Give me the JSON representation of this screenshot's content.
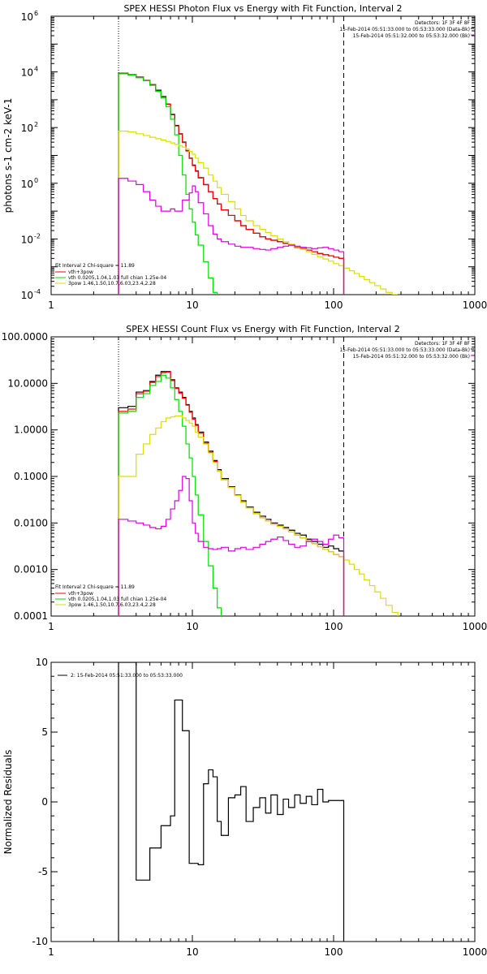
{
  "chart_data": [
    {
      "type": "line",
      "title": "SPEX HESSI Photon Flux vs Energy with Fit Function, Interval 2",
      "ylabel": "photons s-1 cm-2 keV-1",
      "xlabel": "",
      "xscale": "log",
      "yscale": "log",
      "xlim": [
        1,
        1000
      ],
      "ylim": [
        0.0001,
        1000000
      ],
      "x_ticks": [
        "1",
        "10",
        "100",
        "1000"
      ],
      "y_ticks": [
        {
          "v": 0.0001,
          "b": "10",
          "e": "-4"
        },
        {
          "v": 0.01,
          "b": "10",
          "e": "-2"
        },
        {
          "v": 1,
          "b": "10",
          "e": "0"
        },
        {
          "v": 100,
          "b": "10",
          "e": "2"
        },
        {
          "v": 10000,
          "b": "10",
          "e": "4"
        },
        {
          "v": 1000000,
          "b": "10",
          "e": "6"
        }
      ],
      "vlines": [
        {
          "x": 3,
          "style": "dotted"
        },
        {
          "x": 118,
          "style": "dashed"
        }
      ],
      "legend_top_right": [
        "Detectors: 1F 3F 4F 8F",
        "15-Feb-2014 05:51:33.000 to 05:53:33.000 (Data-Bk)",
        "15-Feb-2014 05:51:32.000 to 05:53:32.000 (Bk)"
      ],
      "legend_bottom_left_title": "Fit Interval 2   Chi-square = 11.89",
      "legend_bottom_left": [
        {
          "label": "vth+3pow",
          "color": "#ff0000"
        },
        {
          "label": "vth 0.0205,1.04,1.03  full chian 1.25e-04",
          "color": "#00dd00"
        },
        {
          "label": "3pow 1.46,1.50,10.7,6.03,23.4,2.28",
          "color": "#dddd00"
        }
      ],
      "bin_edges": [
        3,
        3.5,
        4,
        4.5,
        5,
        5.5,
        6,
        6.5,
        7,
        7.5,
        8,
        8.5,
        9,
        9.5,
        10,
        10.5,
        11,
        12,
        13,
        14,
        15,
        16,
        18,
        20,
        22,
        24,
        27,
        30,
        33,
        36,
        40,
        44,
        48,
        53,
        58,
        64,
        70,
        77,
        84,
        92,
        100,
        109,
        118,
        129,
        140,
        152,
        165,
        180,
        196,
        215,
        235,
        260,
        285
      ],
      "series": [
        {
          "name": "data",
          "color": "#000000",
          "values": [
            9000,
            8000,
            6500,
            5000,
            3500,
            2200,
            1300,
            700,
            300,
            120,
            60,
            30,
            15,
            8,
            4.5,
            2.8,
            1.6,
            0.9,
            0.5,
            0.28,
            0.18,
            0.11,
            0.07,
            0.045,
            0.03,
            0.022,
            0.016,
            0.012,
            0.01,
            0.009,
            0.008,
            0.007,
            0.006,
            0.005,
            0.0045,
            0.004,
            0.0035,
            0.003,
            0.0027,
            0.0025,
            0.0022,
            0.002
          ]
        },
        {
          "name": "vth+3pow",
          "color": "#ff0000",
          "values": [
            8700,
            7800,
            6300,
            4900,
            3400,
            2100,
            1250,
            680,
            290,
            115,
            58,
            29,
            14.5,
            7.8,
            4.3,
            2.7,
            1.55,
            0.88,
            0.5,
            0.28,
            0.18,
            0.11,
            0.07,
            0.045,
            0.03,
            0.022,
            0.016,
            0.012,
            0.01,
            0.009,
            0.008,
            0.007,
            0.006,
            0.005,
            0.0045,
            0.004,
            0.0035,
            0.003,
            0.0027,
            0.0025,
            0.0022,
            0.002
          ]
        },
        {
          "name": "vth",
          "color": "#00dd00",
          "values": [
            8600,
            7700,
            6200,
            4800,
            3300,
            2000,
            1150,
            560,
            200,
            55,
            10,
            2,
            0.4,
            0.12,
            0.04,
            0.014,
            0.006,
            0.0015,
            0.0004,
            0.00012,
            4e-05
          ]
        },
        {
          "name": "3pow",
          "color": "#dddd00",
          "values": [
            75,
            70,
            60,
            52,
            45,
            40,
            36,
            32,
            28,
            25,
            22,
            20,
            17,
            14,
            11,
            8,
            5.5,
            3.5,
            2,
            1.2,
            0.7,
            0.4,
            0.22,
            0.12,
            0.07,
            0.045,
            0.03,
            0.022,
            0.017,
            0.013,
            0.01,
            0.008,
            0.0065,
            0.0053,
            0.0043,
            0.0035,
            0.0028,
            0.0023,
            0.0019,
            0.0016,
            0.0013,
            0.0011,
            0.0009,
            0.00072,
            0.00057,
            0.00045,
            0.00035,
            0.00027,
            0.00021,
            0.00016,
            0.00012,
            0.0001
          ]
        },
        {
          "name": "Bk",
          "color": "#dd00dd",
          "values": [
            1.5,
            1.2,
            0.9,
            0.5,
            0.25,
            0.15,
            0.1,
            0.1,
            0.12,
            0.1,
            0.1,
            0.25,
            0.25,
            0.45,
            0.8,
            0.5,
            0.2,
            0.08,
            0.03,
            0.015,
            0.01,
            0.008,
            0.0065,
            0.0055,
            0.005,
            0.005,
            0.0045,
            0.0042,
            0.004,
            0.0045,
            0.005,
            0.0055,
            0.006,
            0.0055,
            0.005,
            0.0048,
            0.0045,
            0.0048,
            0.005,
            0.0045,
            0.004,
            0.0035
          ]
        }
      ]
    },
    {
      "type": "line",
      "title": "SPEX HESSI Count Flux vs Energy with Fit Function, Interval 2",
      "xlabel": "",
      "ylabel": "",
      "xscale": "log",
      "yscale": "log",
      "xlim": [
        1,
        1000
      ],
      "ylim": [
        0.0001,
        100
      ],
      "x_ticks": [
        "1",
        "10",
        "100",
        "1000"
      ],
      "y_ticks": [
        {
          "v": 0.0001,
          "label": "0.0001"
        },
        {
          "v": 0.001,
          "label": "0.0010"
        },
        {
          "v": 0.01,
          "label": "0.0100"
        },
        {
          "v": 0.1,
          "label": "0.1000"
        },
        {
          "v": 1,
          "label": "1.0000"
        },
        {
          "v": 10,
          "label": "10.0000"
        },
        {
          "v": 100,
          "label": "100.0000"
        }
      ],
      "vlines": [
        {
          "x": 3,
          "style": "dotted"
        },
        {
          "x": 118,
          "style": "dashed"
        }
      ],
      "legend_top_right": [
        "Detectors: 1F 3F 4F 8F",
        "15-Feb-2014 05:51:33.000 to 05:53:33.000 (Data-Bk)",
        "15-Feb-2014 05:51:32.000 to 05:53:32.000 (Bk)"
      ],
      "legend_bottom_left_title": "Fit Interval 2   Chi-square = 11.89",
      "legend_bottom_left": [
        {
          "label": "vth+3pow",
          "color": "#ff0000"
        },
        {
          "label": "vth 0.0205,1.04,1.03  full chian 1.25e-04",
          "color": "#00dd00"
        },
        {
          "label": "3pow 1.46,1.50,10.7,6.03,23.4,2.28",
          "color": "#dddd00"
        }
      ],
      "bin_edges": [
        3,
        3.5,
        4,
        4.5,
        5,
        5.5,
        6,
        6.5,
        7,
        7.5,
        8,
        8.5,
        9,
        9.5,
        10,
        10.5,
        11,
        12,
        13,
        14,
        15,
        16,
        18,
        20,
        22,
        24,
        27,
        30,
        33,
        36,
        40,
        44,
        48,
        53,
        58,
        64,
        70,
        77,
        84,
        92,
        100,
        109,
        118,
        129,
        140,
        152,
        165,
        180,
        196,
        215,
        235,
        260,
        285
      ],
      "series": [
        {
          "name": "data",
          "color": "#000000",
          "values": [
            3,
            3.2,
            6.5,
            7,
            11,
            15,
            18,
            18,
            12,
            8,
            6.5,
            5,
            3.5,
            2.5,
            1.8,
            1.3,
            0.9,
            0.55,
            0.35,
            0.22,
            0.14,
            0.09,
            0.06,
            0.04,
            0.03,
            0.022,
            0.017,
            0.014,
            0.012,
            0.01,
            0.009,
            0.008,
            0.007,
            0.006,
            0.0055,
            0.0045,
            0.004,
            0.0035,
            0.003,
            0.0032,
            0.0028,
            0.0025
          ]
        },
        {
          "name": "vth+3pow",
          "color": "#ff0000",
          "values": [
            2.5,
            2.8,
            6,
            6.8,
            10.5,
            14,
            17,
            17.5,
            11.5,
            7.8,
            6.2,
            4.8,
            3.4,
            2.4,
            1.7,
            1.25,
            0.85,
            0.52,
            0.33,
            0.21,
            0.13,
            0.085,
            0.058,
            0.039,
            0.028,
            0.021,
            0.016,
            0.013,
            0.011,
            0.0095,
            0.0085,
            0.0075,
            0.0065,
            0.0055,
            0.0048,
            0.0042,
            0.0036,
            0.0031,
            0.0027,
            0.0024,
            0.0021,
            0.0019
          ]
        },
        {
          "name": "vth",
          "color": "#00dd00",
          "values": [
            2.3,
            2.5,
            5,
            6,
            9,
            11,
            15,
            13,
            8,
            4.5,
            2.5,
            1.2,
            0.5,
            0.25,
            0.1,
            0.04,
            0.015,
            0.004,
            0.0012,
            0.0004,
            0.00015
          ]
        },
        {
          "name": "3pow",
          "color": "#dddd00",
          "values": [
            0.1,
            0.1,
            0.3,
            0.5,
            0.8,
            1.1,
            1.5,
            1.8,
            1.9,
            2,
            2,
            1.8,
            1.6,
            1.4,
            1.2,
            0.9,
            0.7,
            0.5,
            0.32,
            0.2,
            0.13,
            0.085,
            0.058,
            0.039,
            0.028,
            0.021,
            0.016,
            0.013,
            0.011,
            0.0095,
            0.0085,
            0.0075,
            0.0065,
            0.0055,
            0.0048,
            0.0042,
            0.0036,
            0.0031,
            0.0027,
            0.0024,
            0.0021,
            0.0019,
            0.0016,
            0.0013,
            0.001,
            0.0008,
            0.0006,
            0.00045,
            0.00033,
            0.00024,
            0.00017,
            0.00012
          ]
        },
        {
          "name": "Bk",
          "color": "#dd00dd",
          "values": [
            0.012,
            0.011,
            0.01,
            0.009,
            0.008,
            0.0075,
            0.0085,
            0.012,
            0.02,
            0.03,
            0.05,
            0.1,
            0.09,
            0.03,
            0.01,
            0.006,
            0.004,
            0.003,
            0.0028,
            0.0027,
            0.0028,
            0.003,
            0.0025,
            0.0028,
            0.003,
            0.0027,
            0.003,
            0.0035,
            0.004,
            0.0045,
            0.005,
            0.0042,
            0.0035,
            0.003,
            0.0032,
            0.004,
            0.0045,
            0.004,
            0.0035,
            0.0045,
            0.0055,
            0.0048
          ]
        }
      ]
    },
    {
      "type": "line",
      "title": "",
      "ylabel": "Normalized Residuals",
      "xlabel": "",
      "xscale": "log",
      "yscale": "linear",
      "xlim": [
        1,
        1000
      ],
      "ylim": [
        -10,
        10
      ],
      "x_ticks": [
        "1",
        "10",
        "100",
        "1000"
      ],
      "y_ticks": [
        {
          "v": -10,
          "label": "-10"
        },
        {
          "v": -5,
          "label": "-5"
        },
        {
          "v": 0,
          "label": "0"
        },
        {
          "v": 5,
          "label": "5"
        },
        {
          "v": 10,
          "label": "10"
        }
      ],
      "legend_top_left": [
        {
          "label": "2: 15-Feb-2014 05:51:33.000 to 05:53:33.000",
          "color": "#000000"
        }
      ],
      "bin_edges": [
        3,
        3.5,
        4,
        4.5,
        5,
        5.5,
        6,
        6.5,
        7,
        7.5,
        8,
        8.5,
        9,
        9.5,
        10,
        10.5,
        11,
        12,
        13,
        14,
        15,
        16,
        18,
        20,
        22,
        24,
        27,
        30,
        33,
        36,
        40,
        44,
        48,
        53,
        58,
        64,
        70,
        77,
        84,
        92,
        100,
        109,
        118
      ],
      "series": [
        {
          "name": "residuals",
          "color": "#000000",
          "values": [
            10,
            10,
            -5.6,
            -5.6,
            -3.3,
            -3.3,
            -1.7,
            -1.7,
            -1.0,
            7.3,
            7.3,
            5.1,
            5.1,
            -4.4,
            -4.4,
            -4.4,
            -4.5,
            1.3,
            2.3,
            1.8,
            -1.4,
            -2.4,
            0.3,
            0.5,
            1.1,
            -1.4,
            -0.4,
            0.3,
            -0.8,
            0.5,
            -0.9,
            0.2,
            -0.4,
            0.5,
            -0.1,
            0.4,
            -0.2,
            0.9,
            0,
            0.1,
            0.1,
            0.1
          ]
        }
      ]
    }
  ]
}
